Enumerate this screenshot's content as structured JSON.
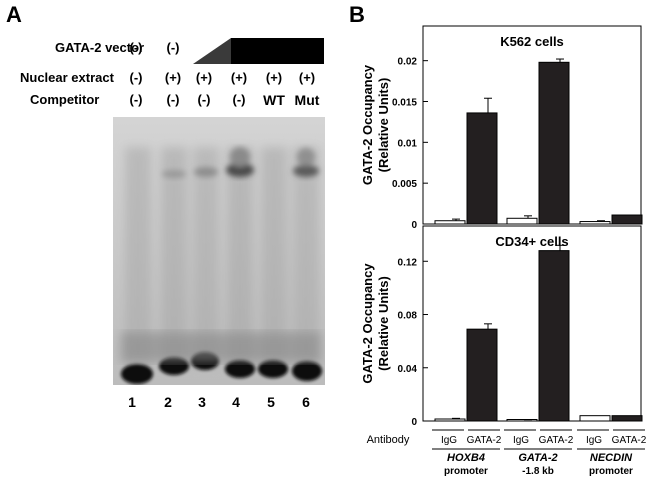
{
  "figure": {
    "panelA": {
      "letter": "A",
      "rows": [
        {
          "label": "GATA-2 vector",
          "values": [
            "(-)",
            "(-)",
            "",
            "",
            "",
            ""
          ]
        },
        {
          "label": "Nuclear extract",
          "values": [
            "(-)",
            "(+)",
            "(+)",
            "(+)",
            "(+)",
            "(+)"
          ]
        },
        {
          "label": "Competitor",
          "values": [
            "(-)",
            "(-)",
            "(-)",
            "(-)",
            "WT",
            "Mut"
          ]
        }
      ],
      "lane_numbers": [
        "1",
        "2",
        "3",
        "4",
        "5",
        "6"
      ]
    },
    "panelB": {
      "letter": "B",
      "antibody_label": "Antibody",
      "groups": [
        {
          "antibodies": [
            "IgG",
            "GATA-2"
          ],
          "line1": "HOXB4",
          "line2": "promoter"
        },
        {
          "antibodies": [
            "IgG",
            "GATA-2"
          ],
          "line1": "GATA-2",
          "line2": "-1.8 kb"
        },
        {
          "antibodies": [
            "IgG",
            "GATA-2"
          ],
          "line1": "NECDIN",
          "line2": "promoter"
        }
      ]
    }
  },
  "chart_data": [
    {
      "type": "bar",
      "title": "K562 cells",
      "ylabel": "GATA-2 Occupancy (Relative Units)",
      "ylim": [
        0,
        0.024
      ],
      "yticks": [
        "0",
        "0.005",
        "0.01",
        "0.015",
        "0.02"
      ],
      "ytick_values": [
        0,
        0.005,
        0.01,
        0.015,
        0.02
      ],
      "categories": [
        "HOXB4 promoter",
        "GATA-2 -1.8 kb",
        "NECDIN promoter"
      ],
      "series": [
        {
          "name": "IgG",
          "color": "#ffffff",
          "values": [
            0.0004,
            0.0007,
            0.0003
          ],
          "errors": [
            0.0002,
            0.0003,
            0.0001
          ]
        },
        {
          "name": "GATA-2",
          "color": "#231f20",
          "values": [
            0.0136,
            0.0198,
            0.0011
          ],
          "errors": [
            0.0018,
            0.0004,
            0.0
          ]
        }
      ]
    },
    {
      "type": "bar",
      "title": "CD34+ cells",
      "ylabel": "GATA-2 Occupancy (Relative Units)",
      "ylim": [
        0,
        0.145
      ],
      "yticks": [
        "0",
        "0.04",
        "0.08",
        "0.12"
      ],
      "ytick_values": [
        0,
        0.04,
        0.08,
        0.12
      ],
      "categories": [
        "HOXB4 promoter",
        "GATA-2 -1.8 kb",
        "NECDIN promoter"
      ],
      "series": [
        {
          "name": "IgG",
          "color": "#ffffff",
          "values": [
            0.0015,
            0.0007,
            0.004
          ],
          "errors": [
            0.0005,
            0.0003,
            0.0
          ]
        },
        {
          "name": "GATA-2",
          "color": "#231f20",
          "values": [
            0.069,
            0.128,
            0.004
          ],
          "errors": [
            0.004,
            0.004,
            0.0
          ]
        }
      ]
    }
  ]
}
